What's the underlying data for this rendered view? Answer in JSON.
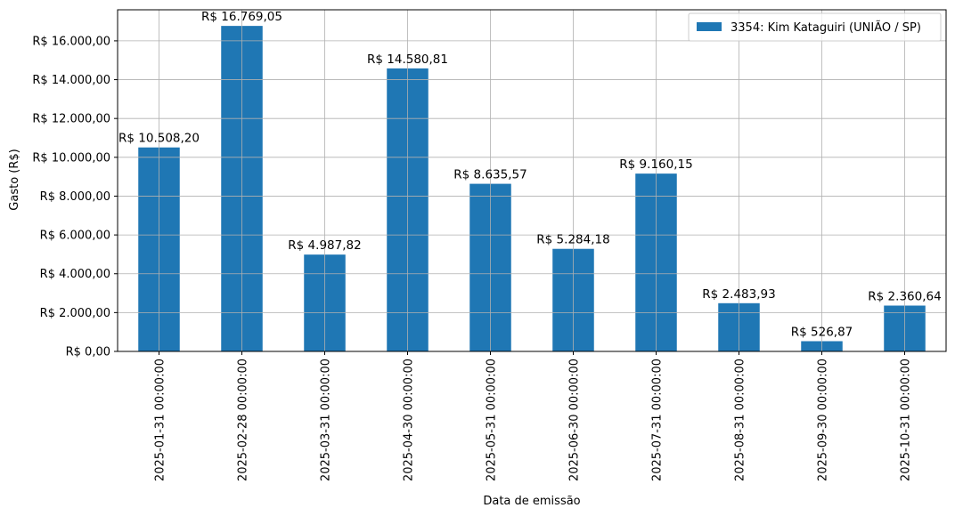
{
  "chart_data": {
    "type": "bar",
    "xlabel": "Data de emissão",
    "ylabel": "Gasto (R$)",
    "ylim": [
      0,
      17600
    ],
    "yticks": [
      0,
      2000,
      4000,
      6000,
      8000,
      10000,
      12000,
      14000,
      16000
    ],
    "ytick_labels": [
      "R$ 0,00",
      "R$ 2.000,00",
      "R$ 4.000,00",
      "R$ 6.000,00",
      "R$ 8.000,00",
      "R$ 10.000,00",
      "R$ 12.000,00",
      "R$ 14.000,00",
      "R$ 16.000,00"
    ],
    "categories": [
      "2025-01-31 00:00:00",
      "2025-02-28 00:00:00",
      "2025-03-31 00:00:00",
      "2025-04-30 00:00:00",
      "2025-05-31 00:00:00",
      "2025-06-30 00:00:00",
      "2025-07-31 00:00:00",
      "2025-08-31 00:00:00",
      "2025-09-30 00:00:00",
      "2025-10-31 00:00:00"
    ],
    "series": [
      {
        "name": "3354: Kim Kataguiri (UNIÃO / SP)",
        "color": "#1f77b4",
        "values": [
          10508.2,
          16769.05,
          4987.82,
          14580.81,
          8635.57,
          5284.18,
          9160.15,
          2483.93,
          526.87,
          2360.64
        ],
        "labels": [
          "R$ 10.508,20",
          "R$ 16.769,05",
          "R$ 4.987,82",
          "R$ 14.580,81",
          "R$ 8.635,57",
          "R$ 5.284,18",
          "R$ 9.160,15",
          "R$ 2.483,93",
          "R$ 526,87",
          "R$ 2.360,64"
        ]
      }
    ],
    "grid": true,
    "legend_position": "top-right"
  }
}
